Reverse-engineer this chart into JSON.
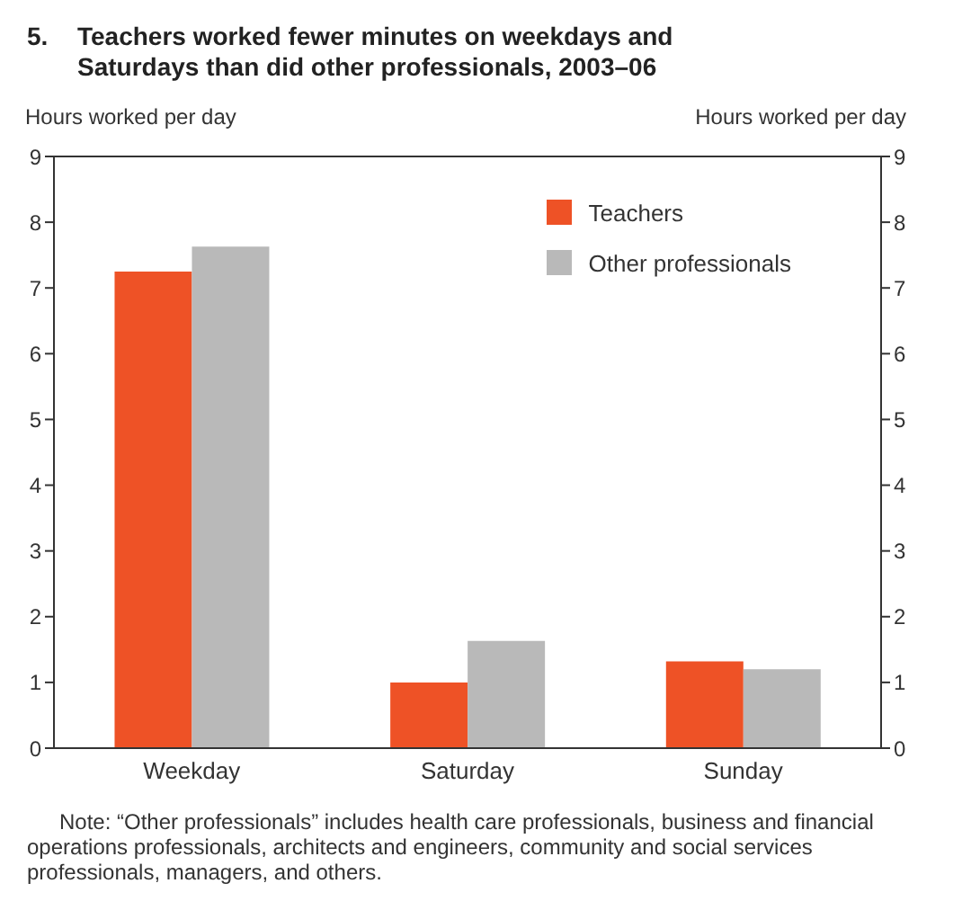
{
  "chart_data": {
    "type": "bar",
    "title": "5.   Teachers worked fewer minutes on weekdays and Saturdays than did other professionals, 2003–06",
    "ylabel": "Hours worked per day",
    "y2label": "Hours worked per day",
    "categories": [
      "Weekday",
      "Saturday",
      "Sunday"
    ],
    "series": [
      {
        "name": "Teachers",
        "color": "#ee5226",
        "values": [
          7.25,
          1.0,
          1.32
        ]
      },
      {
        "name": "Other professionals",
        "color": "#b9b9b9",
        "values": [
          7.63,
          1.63,
          1.2
        ]
      }
    ],
    "ylim": [
      0,
      9
    ],
    "yticks": [
      0,
      1,
      2,
      3,
      4,
      5,
      6,
      7,
      8,
      9
    ],
    "y2lim": [
      0,
      9
    ],
    "y2ticks": [
      0,
      1,
      2,
      3,
      4,
      5,
      6,
      7,
      8,
      9
    ],
    "grid": false,
    "legend": "top right",
    "annotations": [
      "Note: “Other professionals” includes health care professionals, business and financial operations professionals, architects and engineers, community and social services professionals, managers, and others."
    ]
  }
}
